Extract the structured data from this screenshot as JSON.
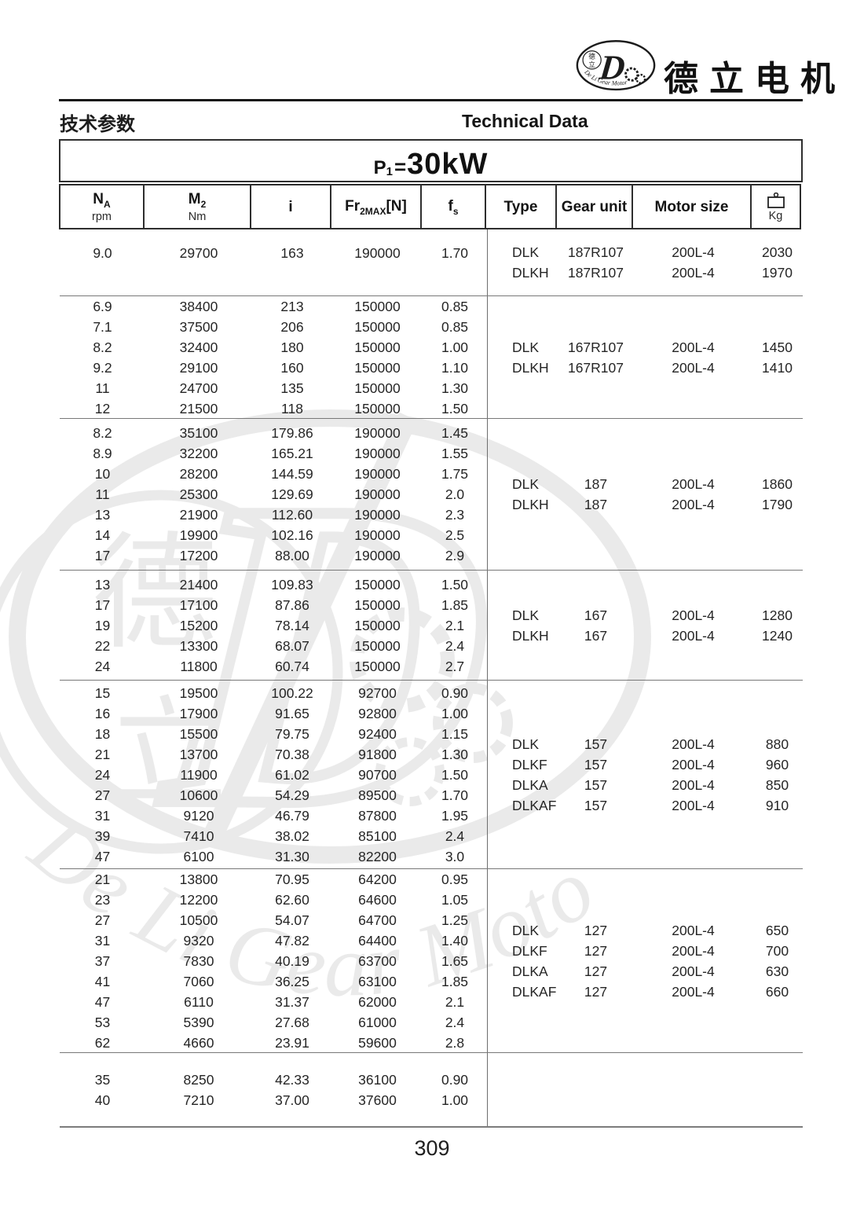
{
  "brand": {
    "name": "德立电机",
    "badge_char1": "德",
    "badge_char2": "立",
    "monogram": "D",
    "ring_text": "De Li Gear Motor",
    "watermark_char1": "德",
    "watermark_char2": "立",
    "watermark_monogram": "D",
    "watermark_text": "De Li Gear Motor"
  },
  "header": {
    "section_title_cn": "技术参数",
    "section_title_en": "Technical Data",
    "power": {
      "base": "P",
      "sub": "1",
      "eq": "=",
      "value": "30kW"
    }
  },
  "table": {
    "columns": {
      "na": {
        "base": "N",
        "sub": "A",
        "unit": "rpm"
      },
      "m2": {
        "base": "M",
        "sub": "2",
        "unit": "Nm"
      },
      "i": {
        "base": "i"
      },
      "fr": {
        "base": "Fr",
        "sub": "2MAX",
        "suffix": "[N]"
      },
      "fs": {
        "base": "f",
        "sub": "s"
      },
      "type": {
        "label": "Type"
      },
      "gear": {
        "label": "Gear unit"
      },
      "motor": {
        "label": "Motor size"
      },
      "kg": {
        "unit": "Kg",
        "icon": "weight-icon"
      }
    },
    "groups": [
      {
        "rows": [
          [
            "9.0",
            "29700",
            "163",
            "190000",
            "1.70"
          ]
        ],
        "models": [
          [
            "DLK",
            "187R107",
            "200L-4",
            "2030"
          ],
          [
            "DLKH",
            "187R107",
            "200L-4",
            "1970"
          ]
        ]
      },
      {
        "rows": [
          [
            "6.9",
            "38400",
            "213",
            "150000",
            "0.85"
          ],
          [
            "7.1",
            "37500",
            "206",
            "150000",
            "0.85"
          ],
          [
            "8.2",
            "32400",
            "180",
            "150000",
            "1.00"
          ],
          [
            "9.2",
            "29100",
            "160",
            "150000",
            "1.10"
          ],
          [
            "11",
            "24700",
            "135",
            "150000",
            "1.30"
          ],
          [
            "12",
            "21500",
            "118",
            "150000",
            "1.50"
          ]
        ],
        "models": [
          [
            "DLK",
            "167R107",
            "200L-4",
            "1450"
          ],
          [
            "DLKH",
            "167R107",
            "200L-4",
            "1410"
          ]
        ]
      },
      {
        "rows": [
          [
            "8.2",
            "35100",
            "179.86",
            "190000",
            "1.45"
          ],
          [
            "8.9",
            "32200",
            "165.21",
            "190000",
            "1.55"
          ],
          [
            "10",
            "28200",
            "144.59",
            "190000",
            "1.75"
          ],
          [
            "11",
            "25300",
            "129.69",
            "190000",
            "2.0"
          ],
          [
            "13",
            "21900",
            "112.60",
            "190000",
            "2.3"
          ],
          [
            "14",
            "19900",
            "102.16",
            "190000",
            "2.5"
          ],
          [
            "17",
            "17200",
            "88.00",
            "190000",
            "2.9"
          ]
        ],
        "models": [
          [
            "DLK",
            "187",
            "200L-4",
            "1860"
          ],
          [
            "DLKH",
            "187",
            "200L-4",
            "1790"
          ]
        ]
      },
      {
        "rows": [
          [
            "13",
            "21400",
            "109.83",
            "150000",
            "1.50"
          ],
          [
            "17",
            "17100",
            "87.86",
            "150000",
            "1.85"
          ],
          [
            "19",
            "15200",
            "78.14",
            "150000",
            "2.1"
          ],
          [
            "22",
            "13300",
            "68.07",
            "150000",
            "2.4"
          ],
          [
            "24",
            "11800",
            "60.74",
            "150000",
            "2.7"
          ]
        ],
        "models": [
          [
            "DLK",
            "167",
            "200L-4",
            "1280"
          ],
          [
            "DLKH",
            "167",
            "200L-4",
            "1240"
          ]
        ]
      },
      {
        "rows": [
          [
            "15",
            "19500",
            "100.22",
            "92700",
            "0.90"
          ],
          [
            "16",
            "17900",
            "91.65",
            "92800",
            "1.00"
          ],
          [
            "18",
            "15500",
            "79.75",
            "92400",
            "1.15"
          ],
          [
            "21",
            "13700",
            "70.38",
            "91800",
            "1.30"
          ],
          [
            "24",
            "11900",
            "61.02",
            "90700",
            "1.50"
          ],
          [
            "27",
            "10600",
            "54.29",
            "89500",
            "1.70"
          ],
          [
            "31",
            "9120",
            "46.79",
            "87800",
            "1.95"
          ],
          [
            "39",
            "7410",
            "38.02",
            "85100",
            "2.4"
          ],
          [
            "47",
            "6100",
            "31.30",
            "82200",
            "3.0"
          ]
        ],
        "models": [
          [
            "DLK",
            "157",
            "200L-4",
            "880"
          ],
          [
            "DLKF",
            "157",
            "200L-4",
            "960"
          ],
          [
            "DLKA",
            "157",
            "200L-4",
            "850"
          ],
          [
            "DLKAF",
            "157",
            "200L-4",
            "910"
          ]
        ]
      },
      {
        "rows": [
          [
            "21",
            "13800",
            "70.95",
            "64200",
            "0.95"
          ],
          [
            "23",
            "12200",
            "62.60",
            "64600",
            "1.05"
          ],
          [
            "27",
            "10500",
            "54.07",
            "64700",
            "1.25"
          ],
          [
            "31",
            "9320",
            "47.82",
            "64400",
            "1.40"
          ],
          [
            "37",
            "7830",
            "40.19",
            "63700",
            "1.65"
          ],
          [
            "41",
            "7060",
            "36.25",
            "63100",
            "1.85"
          ],
          [
            "47",
            "6110",
            "31.37",
            "62000",
            "2.1"
          ],
          [
            "53",
            "5390",
            "27.68",
            "61000",
            "2.4"
          ],
          [
            "62",
            "4660",
            "23.91",
            "59600",
            "2.8"
          ]
        ],
        "models": [
          [
            "DLK",
            "127",
            "200L-4",
            "650"
          ],
          [
            "DLKF",
            "127",
            "200L-4",
            "700"
          ],
          [
            "DLKA",
            "127",
            "200L-4",
            "630"
          ],
          [
            "DLKAF",
            "127",
            "200L-4",
            "660"
          ]
        ]
      },
      {
        "rows": [
          [
            "35",
            "8250",
            "42.33",
            "36100",
            "0.90"
          ],
          [
            "40",
            "7210",
            "37.00",
            "37600",
            "1.00"
          ]
        ],
        "models": []
      }
    ]
  },
  "footer": {
    "page_number": "309"
  }
}
